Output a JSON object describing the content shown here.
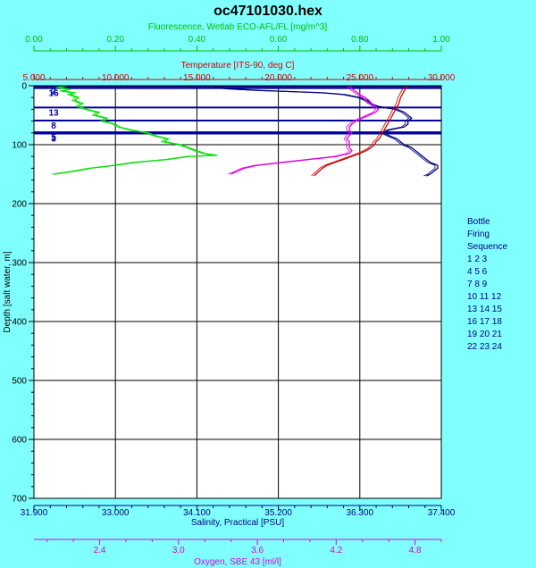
{
  "chart_data": {
    "type": "line",
    "title": "oc47101030.hex",
    "colors": {
      "background": "#80FFFF",
      "plot_area": "#FFFFFF",
      "fluorescence": "#00E000",
      "temperature": "#D00000",
      "salinity": "#000080",
      "oxygen": "#E000E0",
      "bottle_lines": "#0000A0",
      "grid": "#000000"
    },
    "y_axis": {
      "label": "Depth [salt water, m]",
      "range": [
        0,
        700
      ],
      "inverted": true,
      "ticks": [
        "0",
        "100",
        "200",
        "300",
        "400",
        "500",
        "600",
        "700"
      ]
    },
    "axes": {
      "fluorescence": {
        "label": "Fluorescence, Wetlab ECO-AFL/FL [mg/m^3]",
        "range": [
          0,
          1
        ],
        "ticks": [
          "0.00",
          "0.20",
          "0.40",
          "0.60",
          "0.80",
          "1.00"
        ]
      },
      "temperature": {
        "label": "Temperature [ITS-90, deg C]",
        "range": [
          5,
          30
        ],
        "ticks": [
          "5.000",
          "10.000",
          "15.000",
          "20.000",
          "25.000",
          "30.000"
        ]
      },
      "salinity": {
        "label": "Salinity, Practical [PSU]",
        "range": [
          31.9,
          37.4
        ],
        "ticks": [
          "31.900",
          "33.000",
          "34.100",
          "35.200",
          "36.300",
          "37.400"
        ]
      },
      "oxygen": {
        "label": "Oxygen, SBE 43 [ml/l]",
        "range": [
          1.9,
          5.0
        ],
        "ticks": [
          "2.4",
          "3.0",
          "3.6",
          "4.2",
          "4.8"
        ],
        "tick_values": [
          2.4,
          3.0,
          3.6,
          4.2,
          4.8
        ]
      }
    },
    "bottles": {
      "depths": [
        1,
        4,
        37,
        59,
        79,
        81
      ],
      "labels": [
        "2",
        "16",
        "13",
        "8",
        "5",
        "3"
      ]
    },
    "legend": {
      "title_lines": [
        "Bottle",
        "Firing",
        "Sequence"
      ],
      "rows": [
        "1 2 3",
        "4 5 6",
        "7 8 9",
        "10 11 12",
        "13 14 15",
        "16 17 18",
        "19 20 21",
        "22 23 24"
      ]
    },
    "series": [
      {
        "key": "salinity",
        "depth": [
          0,
          5,
          8,
          10,
          12,
          15,
          20,
          25,
          30,
          35,
          40,
          45,
          50,
          55,
          60,
          65,
          70,
          75,
          80,
          85,
          90,
          95,
          100,
          105,
          110,
          115,
          120,
          125,
          130,
          135,
          140,
          145,
          150,
          153
        ],
        "value": [
          34.3,
          34.5,
          34.95,
          35.4,
          35.8,
          36.1,
          36.3,
          36.4,
          36.45,
          36.55,
          36.8,
          36.9,
          36.95,
          37.0,
          36.95,
          36.95,
          36.9,
          36.7,
          36.62,
          36.7,
          36.8,
          36.85,
          36.9,
          37.0,
          37.05,
          37.1,
          37.15,
          37.2,
          37.25,
          37.35,
          37.35,
          37.3,
          37.25,
          37.2
        ]
      },
      {
        "key": "temperature",
        "depth": [
          0,
          5,
          10,
          15,
          20,
          25,
          30,
          35,
          40,
          45,
          50,
          55,
          60,
          65,
          70,
          75,
          80,
          85,
          90,
          95,
          100,
          105,
          110,
          115,
          120,
          125,
          130,
          135,
          140,
          145,
          150,
          153
        ],
        "value": [
          27.9,
          27.8,
          27.7,
          27.6,
          27.5,
          27.45,
          27.4,
          27.3,
          27.2,
          27.1,
          27.0,
          26.9,
          26.8,
          26.7,
          26.6,
          26.5,
          26.4,
          26.3,
          26.2,
          26.0,
          25.9,
          25.7,
          25.4,
          25.0,
          24.5,
          24.0,
          23.5,
          23.0,
          22.7,
          22.5,
          22.3,
          22.2
        ]
      },
      {
        "key": "oxygen",
        "depth": [
          0,
          5,
          10,
          15,
          20,
          25,
          30,
          35,
          40,
          45,
          50,
          55,
          60,
          65,
          70,
          75,
          80,
          85,
          90,
          95,
          100,
          105,
          110,
          115,
          120,
          125,
          130,
          135,
          140,
          145,
          150
        ],
        "value": [
          4.3,
          4.32,
          4.35,
          4.38,
          4.42,
          4.45,
          4.47,
          4.5,
          4.52,
          4.5,
          4.45,
          4.4,
          4.35,
          4.32,
          4.3,
          4.3,
          4.32,
          4.3,
          4.28,
          4.3,
          4.3,
          4.3,
          4.32,
          4.3,
          4.2,
          4.0,
          3.8,
          3.6,
          3.5,
          3.45,
          3.4
        ]
      },
      {
        "key": "fluorescence",
        "depth": [
          0,
          3,
          6,
          9,
          12,
          15,
          20,
          25,
          30,
          35,
          40,
          45,
          50,
          55,
          60,
          65,
          70,
          75,
          80,
          85,
          90,
          95,
          100,
          105,
          110,
          115,
          118,
          120,
          125,
          130,
          135,
          140,
          145,
          150
        ],
        "value": [
          0.08,
          0.06,
          0.09,
          0.07,
          0.1,
          0.09,
          0.11,
          0.1,
          0.12,
          0.11,
          0.13,
          0.16,
          0.15,
          0.18,
          0.17,
          0.2,
          0.21,
          0.24,
          0.28,
          0.3,
          0.33,
          0.32,
          0.36,
          0.38,
          0.4,
          0.42,
          0.45,
          0.38,
          0.33,
          0.25,
          0.2,
          0.14,
          0.1,
          0.05
        ]
      }
    ]
  }
}
